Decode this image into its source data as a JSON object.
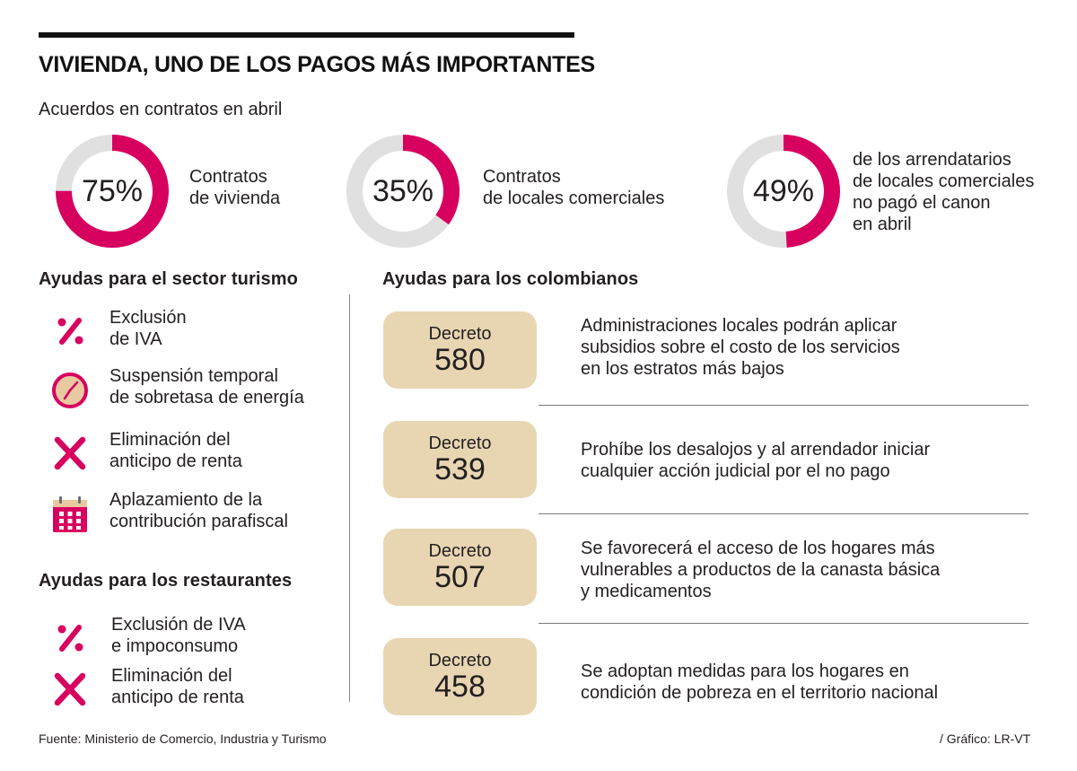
{
  "header": {
    "title": "VIVIENDA, UNO DE LOS PAGOS MÁS IMPORTANTES",
    "subtitle": "Acuerdos en contratos en abril"
  },
  "colors": {
    "accent": "#d8005f",
    "track": "#e0e0e0",
    "decree_bg": "#e8d6b3",
    "text": "#231f20"
  },
  "chart_data": {
    "type": "pie",
    "title": "Acuerdos en contratos en abril",
    "items": [
      {
        "value": 75,
        "label": "75%",
        "lines": [
          "Contratos",
          "de vivienda"
        ]
      },
      {
        "value": 35,
        "label": "35%",
        "lines": [
          "Contratos",
          "de locales comerciales"
        ]
      },
      {
        "value": 49,
        "label": "49%",
        "lines": [
          "de los arrendatarios",
          "de locales comerciales",
          "no pagó el canon",
          "en abril"
        ]
      }
    ]
  },
  "tourism": {
    "title": "Ayudas para el sector turismo",
    "items": [
      {
        "icon": "percent-icon",
        "lines": [
          "Exclusión",
          "de IVA"
        ]
      },
      {
        "icon": "clock-icon",
        "lines": [
          "Suspensión temporal",
          "de sobretasa de energía"
        ]
      },
      {
        "icon": "x-icon",
        "lines": [
          "Eliminación del",
          "anticipo de renta"
        ]
      },
      {
        "icon": "calendar-icon",
        "lines": [
          "Aplazamiento de la",
          "contribución parafiscal"
        ]
      }
    ]
  },
  "restaurants": {
    "title": "Ayudas para los restaurantes",
    "items": [
      {
        "icon": "percent-icon",
        "lines": [
          "Exclusión de IVA",
          "e impoconsumo"
        ]
      },
      {
        "icon": "x-icon",
        "lines": [
          "Eliminación del",
          "anticipo de renta"
        ]
      }
    ]
  },
  "colombians": {
    "title": "Ayudas para los colombianos",
    "decrees": [
      {
        "label": "Decreto",
        "number": "580",
        "lines": [
          "Administraciones locales podrán aplicar",
          "subsidios sobre el costo de los servicios",
          "en los estratos más bajos"
        ]
      },
      {
        "label": "Decreto",
        "number": "539",
        "lines": [
          "Prohíbe los desalojos y al arrendador iniciar",
          "cualquier acción judicial por el no pago"
        ]
      },
      {
        "label": "Decreto",
        "number": "507",
        "lines": [
          "Se favorecerá el acceso de los hogares más",
          "vulnerables a productos de la canasta básica",
          "y medicamentos"
        ]
      },
      {
        "label": "Decreto",
        "number": "458",
        "lines": [
          "Se adoptan medidas para los hogares en",
          "condición de pobreza en el territorio nacional"
        ]
      }
    ]
  },
  "footer": {
    "source": "Fuente: Ministerio de Comercio, Industria y Turismo",
    "credit": "/ Gráfico: LR-VT"
  }
}
